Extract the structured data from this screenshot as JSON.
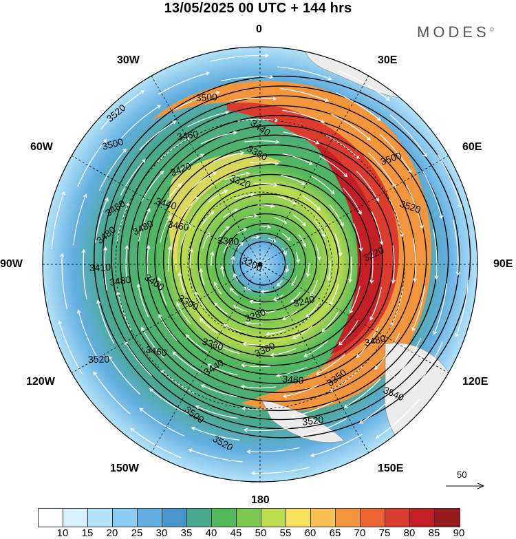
{
  "title": "13/05/2025  00 UTC  + 144 hrs",
  "brand": "MODES",
  "brand_mark": "©",
  "longitude_labels": [
    "0",
    "30E",
    "60E",
    "90E",
    "120E",
    "150E",
    "180",
    "150W",
    "120W",
    "90W",
    "60W",
    "30W"
  ],
  "colorbar": {
    "colors": [
      "#ffffff",
      "#d6f0fc",
      "#b2e2f8",
      "#8ccbf0",
      "#62aee0",
      "#4a94cc",
      "#4aa88e",
      "#52b85a",
      "#7cc850",
      "#bedc50",
      "#f6e05c",
      "#f8c052",
      "#f2963e",
      "#ec6434",
      "#dc3c2e",
      "#c41e26",
      "#961a1e"
    ],
    "labels": [
      "10",
      "15",
      "20",
      "25",
      "30",
      "35",
      "40",
      "45",
      "50",
      "55",
      "60",
      "65",
      "70",
      "75",
      "80",
      "85",
      "90"
    ]
  },
  "vector_scale_label": "50",
  "contour_labels": [
    "3520",
    "3500",
    "3460",
    "3440",
    "3380",
    "3320",
    "3220",
    "3200",
    "3240",
    "3280",
    "3300",
    "3330",
    "3350",
    "3400",
    "3410",
    "3420",
    "3480",
    "3540"
  ]
}
